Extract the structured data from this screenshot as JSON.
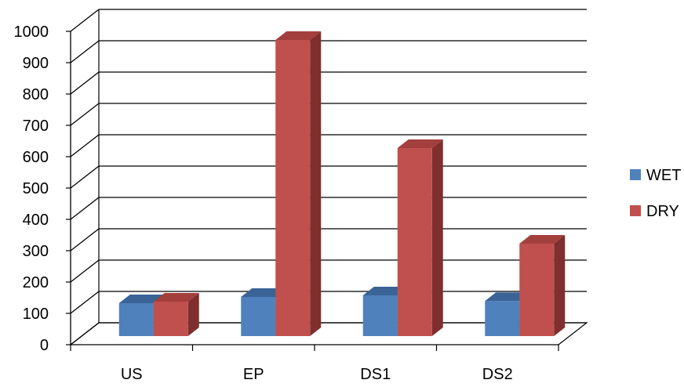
{
  "chart_data": {
    "type": "bar",
    "style": "3d-clustered-column",
    "categories": [
      "US",
      "EP",
      "DS1",
      "DS2"
    ],
    "series": [
      {
        "name": "WET",
        "values": [
          105,
          125,
          130,
          112
        ]
      },
      {
        "name": "DRY",
        "values": [
          110,
          945,
          600,
          295
        ]
      }
    ],
    "ylim": [
      0,
      1000
    ],
    "yticks": [
      "0",
      "100",
      "200",
      "300",
      "400",
      "500",
      "600",
      "700",
      "800",
      "900",
      "1000"
    ],
    "grid": true,
    "legend": "right",
    "colors": {
      "WET": {
        "front": "#4F81BD",
        "top": "#3A6496",
        "side": "#2E5180"
      },
      "DRY": {
        "front": "#C0504D",
        "top": "#A33F3C",
        "side": "#7F2F2D"
      },
      "grid": "#000000",
      "wall": "#ffffff"
    }
  }
}
